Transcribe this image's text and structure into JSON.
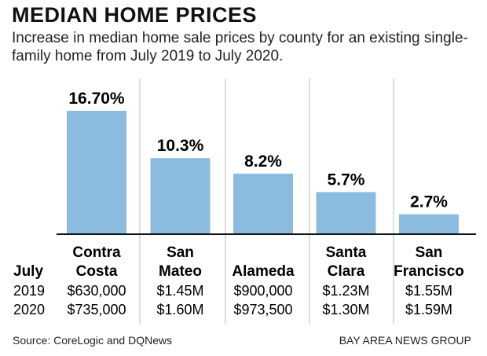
{
  "chart_data": {
    "type": "bar",
    "title": "MEDIAN HOME PRICES",
    "subtitle": "Increase in median home sale prices by county for an existing single-family home from July 2019 to July 2020.",
    "categories": [
      [
        "Contra",
        "Costa"
      ],
      [
        "San",
        "Mateo"
      ],
      [
        "",
        "Alameda"
      ],
      [
        "Santa",
        "Clara"
      ],
      [
        "San",
        "Francisco"
      ]
    ],
    "values": [
      16.7,
      10.3,
      8.2,
      5.7,
      2.7
    ],
    "data_labels": [
      "16.70%",
      "10.3%",
      "8.2%",
      "5.7%",
      "2.7%"
    ],
    "ylim": [
      0,
      17
    ],
    "grid": false,
    "bar_color": "#8cbbe0",
    "table": {
      "row_header": "July",
      "rows": [
        {
          "label": "2019",
          "values": [
            "$630,000",
            "$1.45M",
            "$900,000",
            "$1.23M",
            "$1.55M"
          ]
        },
        {
          "label": "2020",
          "values": [
            "$735,000",
            "$1.60M",
            "$973,500",
            "$1.30M",
            "$1.59M"
          ]
        }
      ]
    },
    "source": "Source: CoreLogic and DQNews",
    "credit": "BAY AREA NEWS GROUP"
  }
}
